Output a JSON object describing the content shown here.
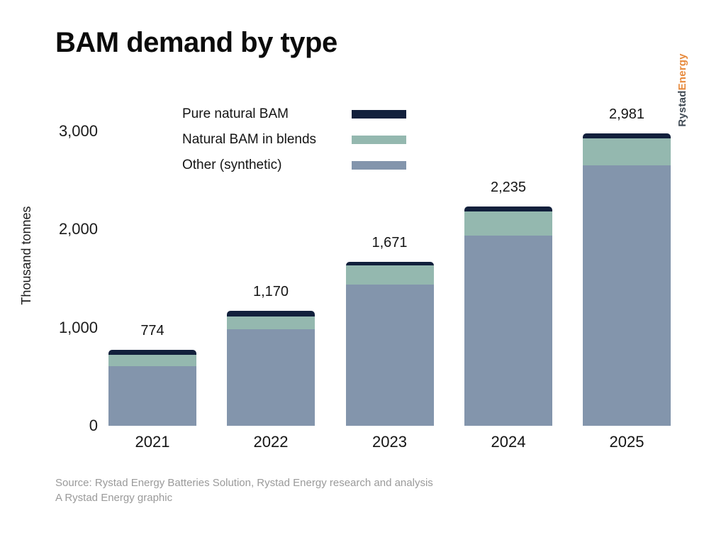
{
  "title": "BAM demand by type",
  "ylabel": "Thousand tonnes",
  "logo": {
    "part1": "Rystad",
    "part2": "Energy"
  },
  "source": {
    "line1": "Source: Rystad Energy Batteries Solution, Rystad Energy research and analysis",
    "line2": "A Rystad Energy graphic"
  },
  "colors": {
    "background": "#ffffff",
    "title_text": "#0b0b0b",
    "axis_text": "#1b1b1b",
    "source_text": "#9a9a9a",
    "logo_rystad": "#414b55",
    "logo_energy": "#e78a3d"
  },
  "chart_data": {
    "type": "bar",
    "stacked": true,
    "title": "BAM demand by type",
    "xlabel": "",
    "ylabel": "Thousand tonnes",
    "categories": [
      "2021",
      "2022",
      "2023",
      "2024",
      "2025"
    ],
    "series": [
      {
        "name": "Pure natural BAM",
        "color": "#12203c",
        "values": [
          50,
          55,
          40,
          50,
          50
        ]
      },
      {
        "name": "Natural BAM in blends",
        "color": "#94b8af",
        "values": [
          115,
          135,
          195,
          250,
          275
        ]
      },
      {
        "name": "Other (synthetic)",
        "color": "#8395ac",
        "values": [
          609,
          980,
          1436,
          1935,
          2656
        ]
      }
    ],
    "totals": [
      774,
      1170,
      1671,
      2235,
      2981
    ],
    "total_labels": [
      "774",
      "1,170",
      "1,671",
      "2,235",
      "2,981"
    ],
    "ytick_values": [
      0,
      1000,
      2000,
      3000
    ],
    "ytick_labels": [
      "0",
      "1,000",
      "2,000",
      "3,000"
    ],
    "ylim": [
      0,
      3000
    ],
    "grid": false,
    "legend_position": "top-center"
  }
}
